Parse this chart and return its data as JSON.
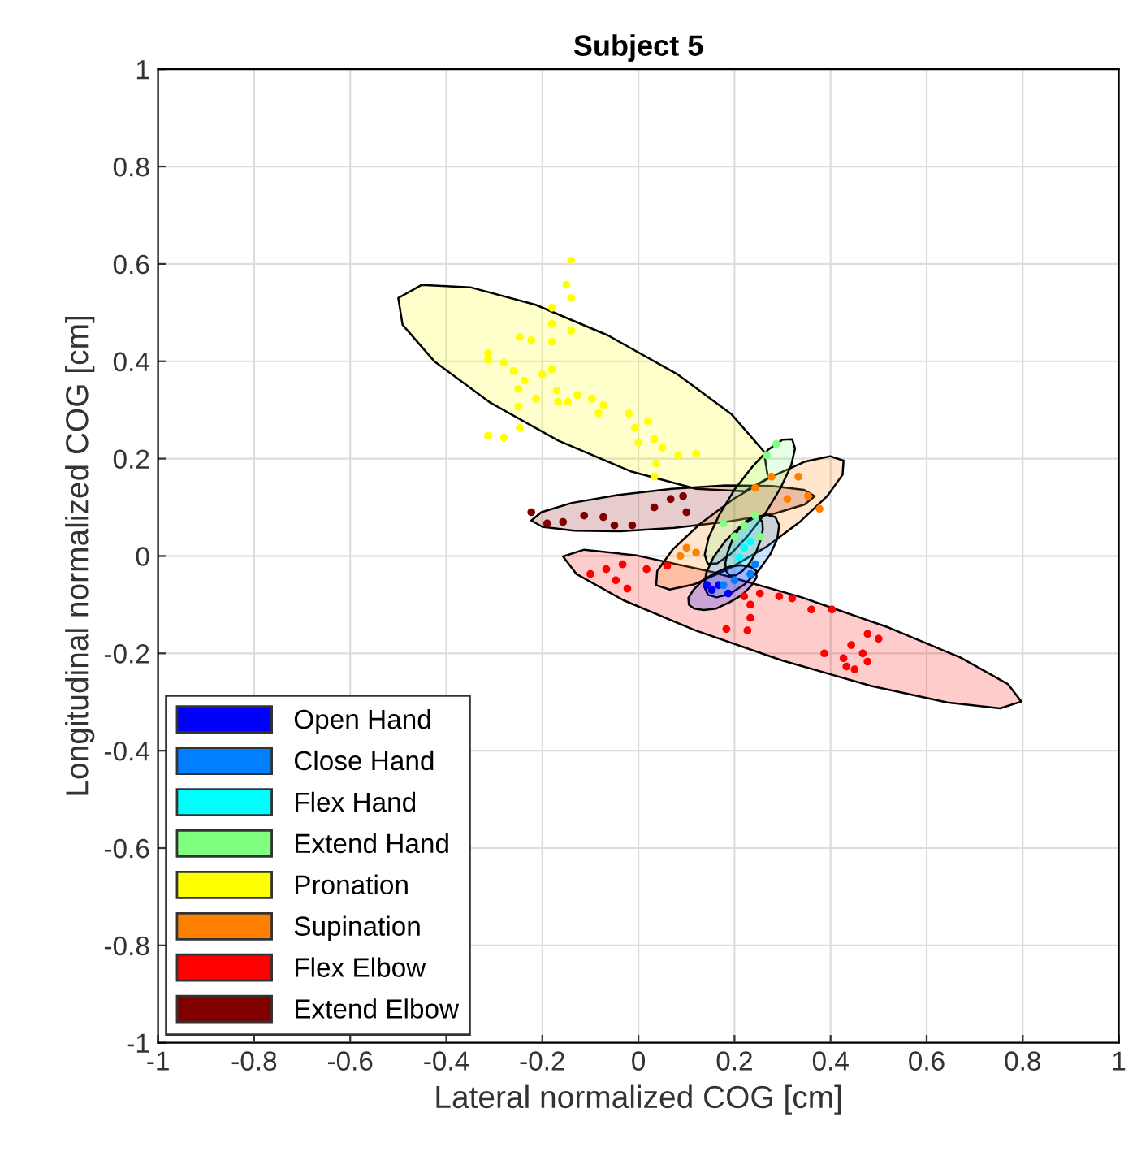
{
  "chart_data": {
    "type": "scatter",
    "title": "Subject 5",
    "xlabel": "Lateral normalized COG [cm]",
    "ylabel": "Longitudinal normalized COG [cm]",
    "xlim": [
      -1,
      1
    ],
    "ylim": [
      -1,
      1
    ],
    "xticks": [
      -1,
      -0.8,
      -0.6,
      -0.4,
      -0.2,
      0,
      0.2,
      0.4,
      0.6,
      0.8,
      1
    ],
    "yticks": [
      -1,
      -0.8,
      -0.6,
      -0.4,
      -0.2,
      0,
      0.2,
      0.4,
      0.6,
      0.8,
      1
    ],
    "grid": true,
    "legend": "bottom left",
    "series": [
      {
        "type": "area",
        "color": "#ffff00",
        "x": [
          0.27,
          0.261,
          0.194,
          0.08,
          -0.063,
          -0.214,
          -0.35,
          -0.451,
          -0.5,
          -0.491,
          -0.424,
          -0.31,
          -0.167,
          -0.016,
          0.12,
          0.221
        ],
        "values": [
          0.16,
          0.215,
          0.291,
          0.374,
          0.453,
          0.516,
          0.552,
          0.557,
          0.53,
          0.475,
          0.399,
          0.316,
          0.237,
          0.174,
          0.138,
          0.133
        ]
      },
      {
        "type": "area",
        "color": "#ff0000",
        "x": [
          0.797,
          0.769,
          0.671,
          0.521,
          0.34,
          0.155,
          -0.003,
          -0.113,
          -0.157,
          -0.129,
          -0.031,
          0.119,
          0.3,
          0.485,
          0.643,
          0.753
        ],
        "values": [
          -0.299,
          -0.263,
          -0.209,
          -0.147,
          -0.085,
          -0.033,
          0.001,
          0.013,
          -0.001,
          -0.037,
          -0.091,
          -0.153,
          -0.215,
          -0.267,
          -0.301,
          -0.313
        ]
      },
      {
        "type": "area",
        "color": "#800000",
        "x": [
          0.367,
          0.344,
          0.278,
          0.182,
          0.069,
          -0.044,
          -0.139,
          -0.202,
          -0.223,
          -0.2,
          -0.134,
          -0.038,
          0.075,
          0.188,
          0.283,
          0.346
        ],
        "values": [
          0.123,
          0.136,
          0.144,
          0.145,
          0.138,
          0.125,
          0.109,
          0.09,
          0.073,
          0.06,
          0.052,
          0.051,
          0.058,
          0.071,
          0.087,
          0.106
        ]
      },
      {
        "type": "area",
        "color": "#ff8000",
        "x": [
          0.427,
          0.399,
          0.347,
          0.277,
          0.199,
          0.127,
          0.071,
          0.039,
          0.037,
          0.065,
          0.117,
          0.187,
          0.265,
          0.337,
          0.393,
          0.425
        ],
        "values": [
          0.196,
          0.205,
          0.194,
          0.163,
          0.118,
          0.065,
          0.013,
          -0.031,
          -0.06,
          -0.069,
          -0.058,
          -0.027,
          0.018,
          0.071,
          0.123,
          0.167
        ]
      },
      {
        "type": "area",
        "color": "#80ff80",
        "x": [
          0.32,
          0.326,
          0.318,
          0.296,
          0.265,
          0.228,
          0.193,
          0.164,
          0.144,
          0.138,
          0.146,
          0.168,
          0.199,
          0.236,
          0.271,
          0.3
        ],
        "values": [
          0.24,
          0.221,
          0.186,
          0.14,
          0.089,
          0.042,
          0.005,
          -0.015,
          -0.016,
          0.003,
          0.038,
          0.084,
          0.135,
          0.182,
          0.219,
          0.239
        ]
      },
      {
        "type": "area",
        "color": "#0080ff",
        "x": [
          0.285,
          0.293,
          0.289,
          0.274,
          0.25,
          0.22,
          0.19,
          0.163,
          0.145,
          0.137,
          0.141,
          0.156,
          0.18,
          0.21,
          0.24,
          0.267
        ],
        "values": [
          0.08,
          0.063,
          0.035,
          0.003,
          -0.03,
          -0.059,
          -0.078,
          -0.085,
          -0.08,
          -0.063,
          -0.035,
          -0.003,
          0.03,
          0.059,
          0.078,
          0.085
        ]
      },
      {
        "type": "area",
        "color": "#00ffff",
        "x": [
          0.25,
          0.258,
          0.259,
          0.254,
          0.245,
          0.232,
          0.216,
          0.202,
          0.19,
          0.182,
          0.181,
          0.186,
          0.195,
          0.208,
          0.224,
          0.238
        ],
        "values": [
          0.08,
          0.07,
          0.054,
          0.032,
          0.008,
          -0.014,
          -0.031,
          -0.04,
          -0.04,
          -0.03,
          -0.014,
          0.008,
          0.032,
          0.054,
          0.071,
          0.08
        ]
      },
      {
        "type": "area",
        "color": "#0000ff",
        "x": [
          0.245,
          0.246,
          0.235,
          0.216,
          0.19,
          0.162,
          0.136,
          0.116,
          0.105,
          0.104,
          0.115,
          0.134,
          0.16,
          0.188,
          0.214,
          0.234
        ],
        "values": [
          -0.03,
          -0.044,
          -0.061,
          -0.08,
          -0.095,
          -0.108,
          -0.111,
          -0.108,
          -0.1,
          -0.086,
          -0.069,
          -0.05,
          -0.035,
          -0.022,
          -0.019,
          -0.022
        ]
      },
      {
        "name": "Open Hand",
        "color": "#0000ff",
        "marker": "circle",
        "x": [
          0.153,
          0.167,
          0.187,
          0.143
        ],
        "values": [
          -0.07,
          -0.06,
          -0.077,
          -0.06
        ]
      },
      {
        "name": "Close Hand",
        "color": "#0080ff",
        "marker": "circle",
        "x": [
          0.243,
          0.233,
          0.2,
          0.177
        ],
        "values": [
          -0.017,
          -0.037,
          -0.05,
          -0.06
        ]
      },
      {
        "name": "Flex Hand",
        "color": "#00ffff",
        "marker": "circle",
        "x": [
          0.22,
          0.21,
          0.233
        ],
        "values": [
          0.017,
          -0.003,
          0.03
        ]
      },
      {
        "name": "Extend Hand",
        "color": "#80ff80",
        "marker": "circle",
        "x": [
          0.287,
          0.267,
          0.243,
          0.22,
          0.2,
          0.177,
          0.253
        ],
        "values": [
          0.23,
          0.207,
          0.083,
          0.063,
          0.04,
          0.067,
          0.04
        ]
      },
      {
        "name": "Pronation",
        "color": "#ffff00",
        "marker": "circle",
        "x": [
          -0.14,
          -0.15,
          -0.14,
          -0.18,
          -0.18,
          -0.14,
          -0.247,
          -0.223,
          -0.18,
          -0.313,
          -0.313,
          -0.28,
          -0.26,
          -0.237,
          -0.25,
          -0.2,
          -0.18,
          -0.213,
          -0.25,
          -0.247,
          -0.313,
          -0.28,
          -0.17,
          -0.167,
          -0.147,
          -0.127,
          -0.097,
          -0.073,
          -0.083,
          -0.02,
          -0.007,
          0.02,
          0,
          0.033,
          0.05,
          0.083,
          0.037,
          0.033,
          0.12
        ],
        "values": [
          0.607,
          0.557,
          0.53,
          0.51,
          0.477,
          0.463,
          0.45,
          0.443,
          0.44,
          0.417,
          0.403,
          0.397,
          0.38,
          0.36,
          0.343,
          0.373,
          0.383,
          0.323,
          0.307,
          0.263,
          0.247,
          0.243,
          0.34,
          0.317,
          0.317,
          0.33,
          0.323,
          0.31,
          0.293,
          0.293,
          0.263,
          0.277,
          0.233,
          0.24,
          0.223,
          0.207,
          0.19,
          0.163,
          0.21
        ]
      },
      {
        "name": "Supination",
        "color": "#ff8000",
        "marker": "circle",
        "x": [
          0.277,
          0.333,
          0.353,
          0.377,
          0.31,
          0.1,
          0.087,
          0.12,
          0.243
        ],
        "values": [
          0.163,
          0.163,
          0.123,
          0.097,
          0.117,
          0.017,
          0.0,
          0.007,
          0.14
        ]
      },
      {
        "name": "Flex Elbow",
        "color": "#ff0000",
        "marker": "circle",
        "x": [
          -0.1,
          -0.067,
          -0.033,
          -0.023,
          -0.047,
          0.017,
          0.06,
          0.22,
          0.233,
          0.253,
          0.293,
          0.32,
          0.36,
          0.403,
          0.233,
          0.227,
          0.183,
          0.387,
          0.427,
          0.443,
          0.477,
          0.5,
          0.467,
          0.477,
          0.433,
          0.45
        ],
        "values": [
          -0.037,
          -0.027,
          -0.017,
          -0.067,
          -0.05,
          -0.027,
          -0.02,
          -0.083,
          -0.1,
          -0.077,
          -0.083,
          -0.087,
          -0.11,
          -0.11,
          -0.127,
          -0.153,
          -0.15,
          -0.2,
          -0.21,
          -0.183,
          -0.16,
          -0.17,
          -0.2,
          -0.217,
          -0.227,
          -0.233
        ]
      },
      {
        "name": "Extend Elbow",
        "color": "#800000",
        "marker": "circle",
        "x": [
          -0.223,
          -0.19,
          -0.157,
          -0.113,
          -0.073,
          -0.05,
          -0.013,
          0.033,
          0.067,
          0.1,
          0.093
        ],
        "values": [
          0.09,
          0.067,
          0.07,
          0.083,
          0.08,
          0.063,
          0.063,
          0.1,
          0.117,
          0.09,
          0.123
        ]
      }
    ]
  }
}
